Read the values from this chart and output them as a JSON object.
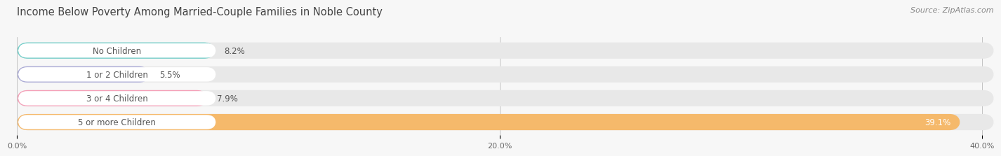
{
  "title": "Income Below Poverty Among Married-Couple Families in Noble County",
  "source": "Source: ZipAtlas.com",
  "categories": [
    "No Children",
    "1 or 2 Children",
    "3 or 4 Children",
    "5 or more Children"
  ],
  "values": [
    8.2,
    5.5,
    7.9,
    39.1
  ],
  "labels": [
    "8.2%",
    "5.5%",
    "7.9%",
    "39.1%"
  ],
  "bar_colors": [
    "#72cec9",
    "#ababd6",
    "#f4a0b8",
    "#f5b96b"
  ],
  "bar_bg_color": "#e8e8e8",
  "label_pill_color": "#ffffff",
  "xlim": [
    0,
    40.5
  ],
  "xticks": [
    0.0,
    20.0,
    40.0
  ],
  "xticklabels": [
    "0.0%",
    "20.0%",
    "40.0%"
  ],
  "title_fontsize": 10.5,
  "source_fontsize": 8,
  "value_label_fontsize": 8.5,
  "tick_fontsize": 8,
  "category_fontsize": 8.5,
  "bg_color": "#f7f7f7",
  "title_color": "#444444",
  "source_color": "#888888",
  "text_color": "#555555"
}
